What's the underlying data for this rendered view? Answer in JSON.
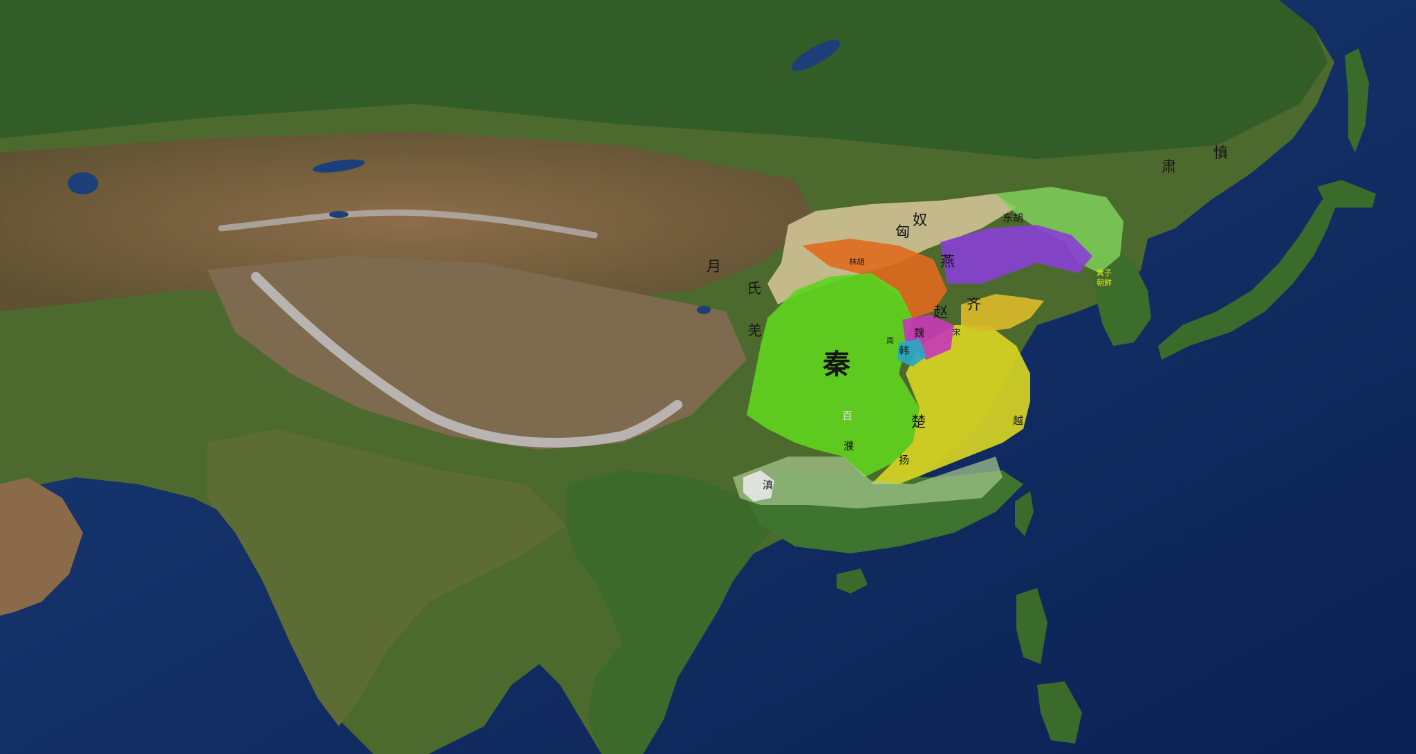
{
  "map": {
    "labels": {
      "qin": "秦",
      "chu": "楚",
      "zhao": "赵",
      "yan": "燕",
      "qi": "齐",
      "wei": "魏",
      "han": "韩",
      "xiongnu_1": "匈",
      "xiongnu_2": "奴",
      "donghu_1": "东",
      "donghu_2": "胡",
      "yuezhi_1": "月",
      "yuezhi_2": "氏",
      "qiang": "羌",
      "baiyue": "百",
      "pu": "濮",
      "yang": "扬",
      "dian": "滇",
      "yue": "越",
      "sushen_1": "肃",
      "sushen_2": "慎",
      "linhu": "林胡",
      "jizi_chaoxian_1": "箕子",
      "jizi_chaoxian_2": "朝鲜",
      "zhou": "周",
      "song": "宋"
    },
    "colors": {
      "ocean": "#0e2a5e",
      "qin": "#5fd31f",
      "chu": "#d6d424",
      "zhao": "#e06a1e",
      "yan": "#8a3fd6",
      "qi": "#d9b82a",
      "wei": "#c53bb5",
      "han": "#2aa8c4",
      "xiongnu": "#d9c79a",
      "donghu": "#7fcf5a",
      "south": "#a8c98f",
      "dian": "#e8e8e8"
    }
  }
}
